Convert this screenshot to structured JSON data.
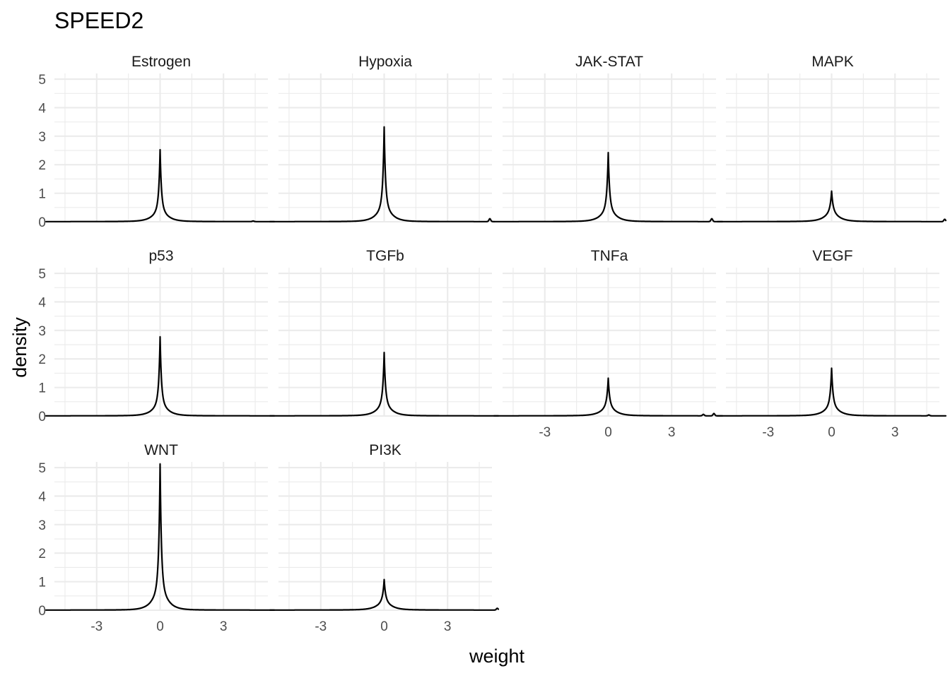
{
  "chart_data": {
    "type": "line",
    "title": "SPEED2",
    "xlabel": "weight",
    "ylabel": "density",
    "xlim": [
      -5.0,
      5.1
    ],
    "ylim": [
      0,
      5.2
    ],
    "x_ticks": [
      -3,
      0,
      3
    ],
    "x_tick_labels": [
      "-3",
      "0",
      "3"
    ],
    "y_ticks": [
      0,
      1,
      2,
      3,
      4,
      5
    ],
    "y_tick_labels": [
      "0",
      "1",
      "2",
      "3",
      "4",
      "5"
    ],
    "grid": true,
    "facet_layout": {
      "columns": 4,
      "rows": 3
    },
    "panels": [
      {
        "name": "Estrogen",
        "x_range": [
          -5.4,
          5.4
        ],
        "peak": 2.5,
        "shoulder": 0.65,
        "extras": [
          [
            4.4,
            0.02
          ]
        ]
      },
      {
        "name": "Hypoxia",
        "x_range": [
          -5.4,
          5.2
        ],
        "peak": 3.3,
        "shoulder": 0.85,
        "extras": [
          [
            5.0,
            0.1
          ]
        ]
      },
      {
        "name": "JAK-STAT",
        "x_range": [
          -5.4,
          5.4
        ],
        "peak": 2.4,
        "shoulder": 0.7,
        "extras": [
          [
            4.9,
            0.1
          ]
        ]
      },
      {
        "name": "MAPK",
        "x_range": [
          -5.4,
          5.4
        ],
        "peak": 1.05,
        "shoulder": 0.5,
        "extras": [
          [
            5.35,
            0.08
          ]
        ]
      },
      {
        "name": "p53",
        "x_range": [
          -5.4,
          5.4
        ],
        "peak": 2.75,
        "shoulder": 0.7,
        "extras": []
      },
      {
        "name": "TGFb",
        "x_range": [
          -5.4,
          5.4
        ],
        "peak": 2.2,
        "shoulder": 0.65,
        "extras": []
      },
      {
        "name": "TNFa",
        "x_range": [
          -5.4,
          5.4
        ],
        "peak": 1.3,
        "shoulder": 0.5,
        "extras": [
          [
            4.5,
            0.05
          ],
          [
            5.0,
            0.08
          ]
        ]
      },
      {
        "name": "VEGF",
        "x_range": [
          -5.4,
          5.4
        ],
        "peak": 1.65,
        "shoulder": 0.55,
        "extras": [
          [
            4.6,
            0.03
          ]
        ]
      },
      {
        "name": "WNT",
        "x_range": [
          -5.4,
          5.4
        ],
        "peak": 5.1,
        "shoulder": 1.2,
        "extras": []
      },
      {
        "name": "PI3K",
        "x_range": [
          -5.4,
          5.4
        ],
        "peak": 1.05,
        "shoulder": 0.45,
        "extras": [
          [
            5.35,
            0.06
          ]
        ]
      }
    ]
  }
}
